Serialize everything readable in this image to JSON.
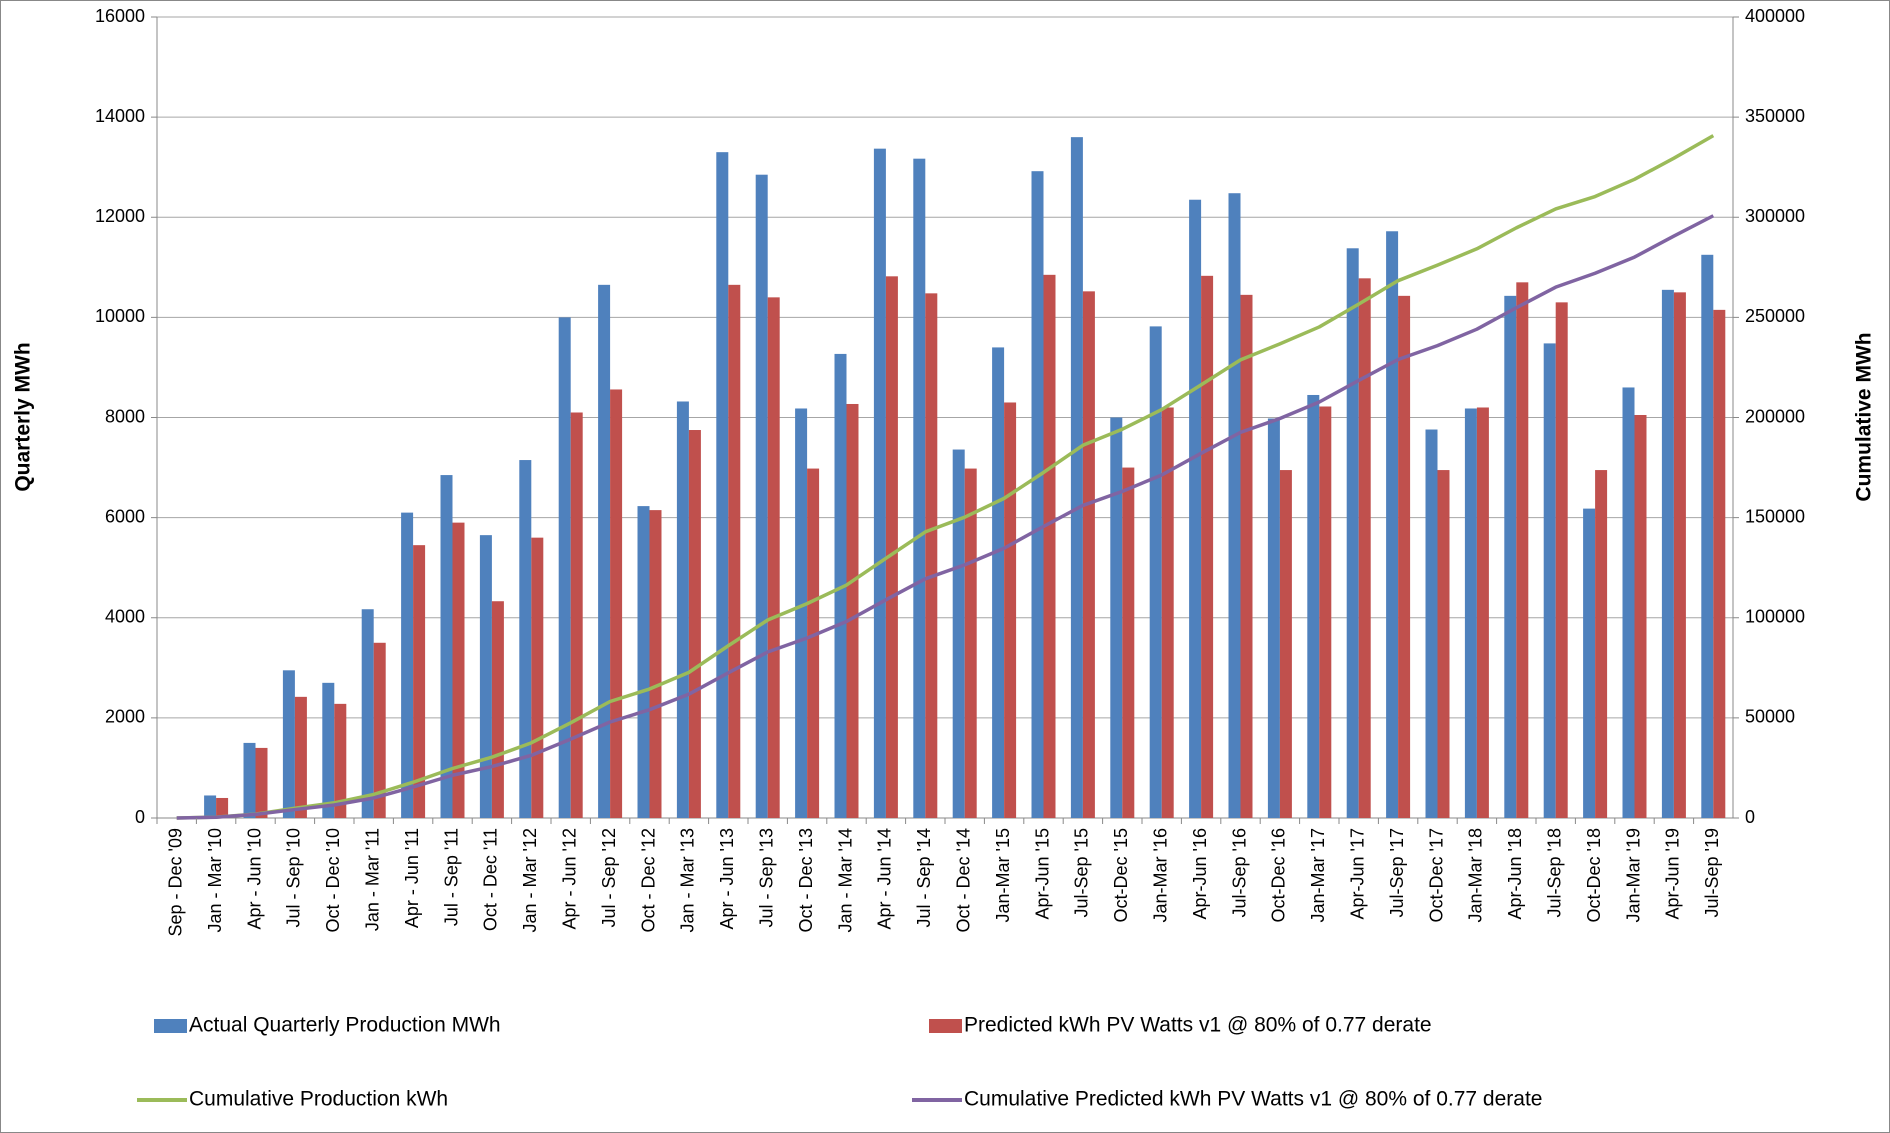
{
  "chart_data": {
    "type": "bar",
    "y_label": "Quarterly MWh",
    "y2_label": "Cumulative MWh",
    "categories": [
      "Sep - Dec '09",
      "Jan - Mar '10",
      "Apr - Jun '10",
      "Jul - Sep '10",
      "Oct - Dec '10",
      "Jan - Mar '11",
      "Apr - Jun '11",
      "Jul - Sep '11",
      "Oct - Dec '11",
      "Jan - Mar '12",
      "Apr - Jun '12",
      "Jul - Sep '12",
      "Oct - Dec '12",
      "Jan - Mar '13",
      "Apr - Jun '13",
      "Jul - Sep '13",
      "Oct - Dec '13",
      "Jan - Mar '14",
      "Apr - Jun '14",
      "Jul - Sep '14",
      "Oct - Dec '14",
      "Jan-Mar '15",
      "Apr-Jun '15",
      "Jul-Sep '15",
      "Oct-Dec '15",
      "Jan-Mar '16",
      "Apr-Jun '16",
      "Jul-Sep '16",
      "Oct-Dec '16",
      "Jan-Mar '17",
      "Apr-Jun '17",
      "Jul-Sep '17",
      "Oct-Dec '17",
      "Jan-Mar '18",
      "Apr-Jun '18",
      "Jul-Sep '18",
      "Oct-Dec '18",
      "Jan-Mar '19",
      "Apr-Jun '19",
      "Jul-Sep '19"
    ],
    "series": [
      {
        "name": "Actual Quarterly Production MWh",
        "type": "bar",
        "color": "#4f81bd",
        "values": [
          0,
          450,
          1500,
          2950,
          2700,
          4170,
          6100,
          6850,
          5650,
          7150,
          10000,
          10650,
          6230,
          8320,
          13300,
          12850,
          8180,
          9270,
          13370,
          13170,
          7360,
          9400,
          12920,
          13600,
          8000,
          9820,
          12350,
          12480,
          7980,
          8450,
          11380,
          11720,
          7760,
          8180,
          10430,
          9480,
          6180,
          8600,
          10550,
          11250
        ]
      },
      {
        "name": "Predicted kWh PV Watts v1 @ 80% of 0.77 derate",
        "type": "bar",
        "color": "#c0504d",
        "values": [
          0,
          400,
          1400,
          2420,
          2280,
          3500,
          5450,
          5900,
          4330,
          5600,
          8100,
          8560,
          6150,
          7750,
          10650,
          10400,
          6980,
          8270,
          10820,
          10480,
          6980,
          8300,
          10850,
          10520,
          7000,
          8200,
          10830,
          10450,
          6950,
          8220,
          10780,
          10430,
          6950,
          8200,
          10700,
          10300,
          6950,
          8050,
          10500,
          10150
        ]
      },
      {
        "name": "Cumulative Production kWh",
        "type": "line",
        "axis": "y2",
        "color": "#9bbb59",
        "values": [
          0,
          450,
          1950,
          4900,
          7600,
          11770,
          17870,
          24720,
          30370,
          37520,
          47520,
          58170,
          64400,
          72720,
          86020,
          98870,
          107050,
          116320,
          129690,
          142860,
          150220,
          159620,
          172540,
          186140,
          194140,
          203960,
          216310,
          228790,
          236770,
          245220,
          256600,
          268320,
          276080,
          284260,
          294690,
          304170,
          310350,
          318950,
          329500,
          340750
        ]
      },
      {
        "name": "Cumulative Predicted kWh PV Watts v1 @ 80% of 0.77 derate",
        "type": "line",
        "axis": "y2",
        "color": "#8064a2",
        "values": [
          0,
          400,
          1800,
          4220,
          6500,
          10000,
          15450,
          21350,
          25680,
          31280,
          39380,
          47940,
          54090,
          61840,
          72490,
          82890,
          89870,
          98140,
          108960,
          119440,
          126420,
          134720,
          145570,
          156090,
          163090,
          171290,
          182120,
          192570,
          199520,
          207740,
          218520,
          228950,
          235900,
          244100,
          254800,
          265100,
          272050,
          280100,
          290600,
          300750
        ]
      }
    ],
    "ylim": [
      0,
      16000
    ],
    "yticks": [
      0,
      2000,
      4000,
      6000,
      8000,
      10000,
      12000,
      14000,
      16000
    ],
    "y2lim": [
      0,
      400000
    ],
    "y2ticks": [
      0,
      50000,
      100000,
      150000,
      200000,
      250000,
      300000,
      350000,
      400000
    ],
    "grid": true
  }
}
